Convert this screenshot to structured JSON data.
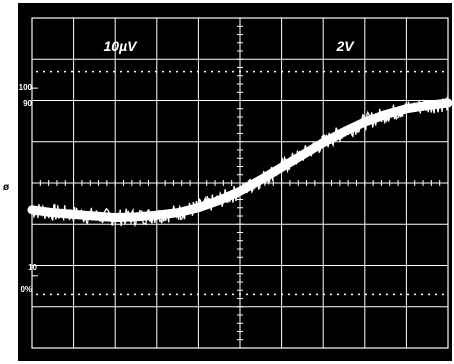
{
  "chart_data": {
    "type": "line",
    "title": "",
    "xlabel": "",
    "ylabel": "",
    "channel_labels": {
      "left": "10µV",
      "right": "2V"
    },
    "y_tick_labels": [
      "100",
      "90",
      "10",
      "0%"
    ],
    "ground_marker": "ø",
    "grid": true,
    "divisions": {
      "x": 10,
      "y": 8
    },
    "xlim": [
      0,
      10
    ],
    "ylim": [
      -4,
      4
    ],
    "series": [
      {
        "x": [
          0,
          0.5,
          1,
          1.5,
          2,
          2.5,
          3,
          3.5,
          4,
          4.5,
          5,
          5.5,
          6,
          6.5,
          7,
          7.5,
          8,
          8.5,
          9,
          9.5,
          10
        ],
        "values": [
          -0.65,
          -0.72,
          -0.76,
          -0.8,
          -0.84,
          -0.82,
          -0.78,
          -0.72,
          -0.6,
          -0.42,
          -0.2,
          0.08,
          0.38,
          0.68,
          0.98,
          1.24,
          1.48,
          1.66,
          1.8,
          1.88,
          1.94
        ]
      }
    ],
    "colors": {
      "background": "#000000",
      "grid": "#ffffff",
      "trace": "#ffffff",
      "page": "#ffffff"
    }
  }
}
